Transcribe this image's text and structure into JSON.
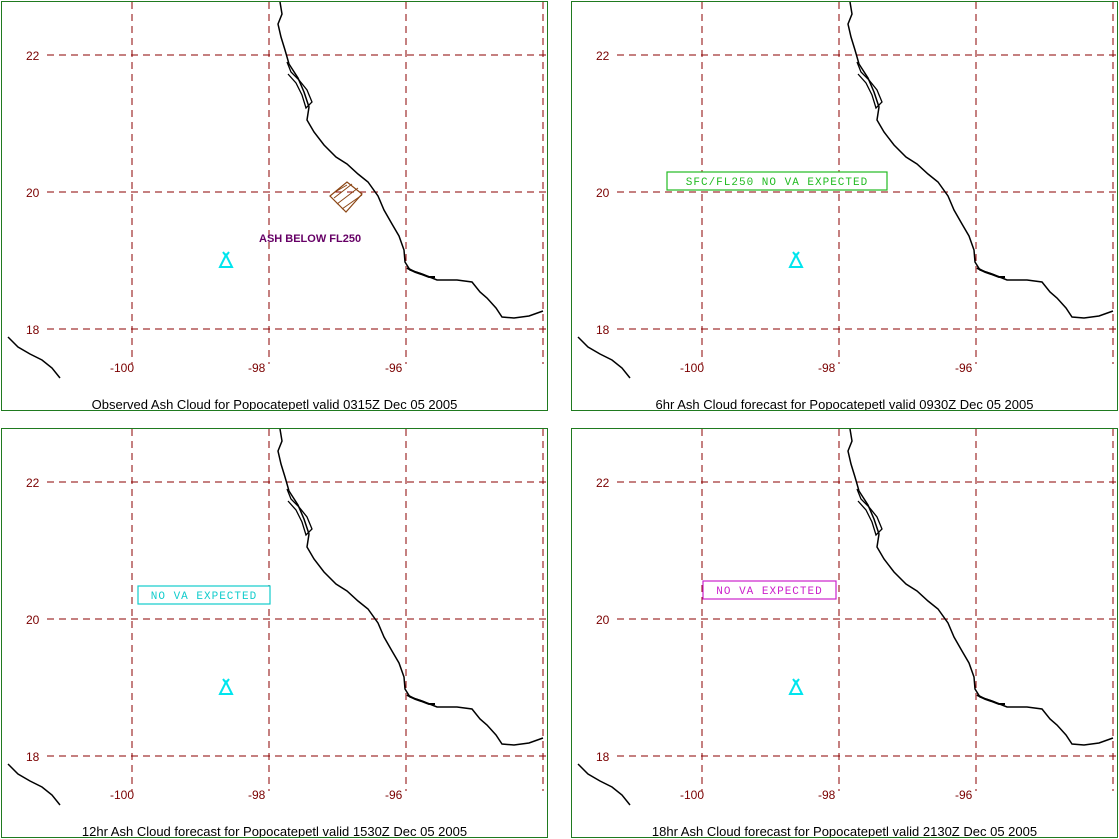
{
  "panels": [
    {
      "caption": "Observed Ash Cloud for Popocatepetl valid 0315Z Dec 05 2005",
      "ash_label": "ASH BELOW FL250",
      "has_ash_polygon": true,
      "note": null
    },
    {
      "caption": "6hr Ash Cloud forecast for Popocatepetl valid 0930Z Dec 05 2005",
      "note": {
        "text": "SFC/FL250 NO VA EXPECTED",
        "color": "#22bb22"
      }
    },
    {
      "caption": "12hr Ash Cloud forecast for Popocatepetl valid 1530Z Dec 05 2005",
      "note": {
        "text": "NO VA EXPECTED",
        "color": "#11cccc"
      }
    },
    {
      "caption": "18hr Ash Cloud forecast for Popocatepetl valid 2130Z Dec 05 2005",
      "note": {
        "text": "NO VA EXPECTED",
        "color": "#cc22cc"
      }
    }
  ],
  "lat_labels": [
    "22",
    "20",
    "18"
  ],
  "lon_labels": [
    "-100",
    "-98",
    "-96"
  ],
  "colors": {
    "grid": "#8b0000",
    "labels": "#7a0000",
    "coast": "#000000",
    "volcano": "#00e5ee",
    "ash": "#8b4513",
    "border": "#1f7a1f"
  },
  "volcano_icon": "volcano-triangle-icon"
}
